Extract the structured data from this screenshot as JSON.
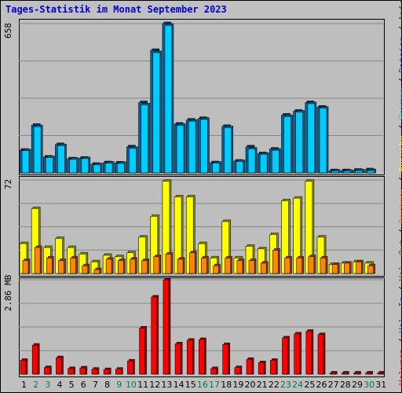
{
  "title": "Tages-Statistik im Monat September 2023",
  "colors": {
    "background": "#c0c0c0",
    "plot_background": "#bebebe",
    "hits_front": "#00ccff",
    "hits_side": "#006699",
    "files_front": "#00aadd",
    "visits_front": "#ffff00",
    "visits_side": "#999900",
    "hosts_front": "#ff8800",
    "hosts_side": "#994400",
    "volume_front": "#ff0000",
    "volume_side": "#990000",
    "weekday_label": "#000000",
    "weekend_label": "#008040"
  },
  "chart_data": [
    {
      "type": "bar",
      "name": "hits-files-panel",
      "ymax_label": "658",
      "ylim": [
        0,
        658
      ],
      "x": [
        "1",
        "2",
        "3",
        "4",
        "5",
        "6",
        "7",
        "8",
        "9",
        "10",
        "11",
        "12",
        "13",
        "14",
        "15",
        "16",
        "17",
        "18",
        "19",
        "20",
        "21",
        "22",
        "23",
        "24",
        "25",
        "26",
        "27",
        "28",
        "29",
        "30",
        "31"
      ],
      "series": [
        {
          "name": "Anfragen",
          "values": [
            100,
            210,
            70,
            125,
            62,
            65,
            38,
            45,
            44,
            115,
            310,
            540,
            658,
            215,
            233,
            240,
            45,
            205,
            52,
            115,
            85,
            105,
            255,
            272,
            310,
            290,
            10,
            10,
            12,
            14,
            0
          ]
        },
        {
          "name": "Dateien",
          "values": [
            98,
            204,
            68,
            120,
            60,
            63,
            36,
            43,
            42,
            108,
            300,
            530,
            650,
            210,
            228,
            236,
            43,
            200,
            50,
            105,
            82,
            100,
            248,
            268,
            305,
            285,
            8,
            8,
            10,
            10,
            0
          ]
        },
        {
          "name": "Seiten",
          "values": [
            0,
            0,
            0,
            0,
            0,
            0,
            0,
            0,
            0,
            0,
            0,
            0,
            0,
            0,
            0,
            0,
            0,
            0,
            0,
            0,
            0,
            0,
            0,
            0,
            0,
            0,
            0,
            0,
            0,
            0,
            0
          ]
        }
      ]
    },
    {
      "type": "bar",
      "name": "visits-hosts-panel",
      "ymax_label": "72",
      "ylim": [
        0,
        72
      ],
      "x": [
        "1",
        "2",
        "3",
        "4",
        "5",
        "6",
        "7",
        "8",
        "9",
        "10",
        "11",
        "12",
        "13",
        "14",
        "15",
        "16",
        "17",
        "18",
        "19",
        "20",
        "21",
        "22",
        "23",
        "24",
        "25",
        "26",
        "27",
        "28",
        "29",
        "30",
        "31"
      ],
      "series": [
        {
          "name": "Besuche",
          "values": [
            23,
            50,
            20,
            27,
            20,
            15,
            9,
            14,
            13,
            16,
            28,
            44,
            71,
            59,
            59,
            23,
            12,
            40,
            12,
            21,
            19,
            30,
            56,
            58,
            71,
            28,
            7,
            8,
            9,
            8,
            0
          ]
        },
        {
          "name": "Rechner",
          "values": [
            10,
            20,
            12,
            10,
            12,
            6,
            3,
            11,
            10,
            11,
            10,
            13,
            15,
            11,
            16,
            12,
            6,
            12,
            10,
            10,
            8,
            18,
            12,
            12,
            13,
            12,
            7,
            8,
            9,
            6,
            0
          ]
        }
      ]
    },
    {
      "type": "bar",
      "name": "volume-panel",
      "ymax_label": "2.86 MB",
      "ylim": [
        0,
        2.86
      ],
      "x": [
        "1",
        "2",
        "3",
        "4",
        "5",
        "6",
        "7",
        "8",
        "9",
        "10",
        "11",
        "12",
        "13",
        "14",
        "15",
        "16",
        "17",
        "18",
        "19",
        "20",
        "21",
        "22",
        "23",
        "24",
        "25",
        "26",
        "27",
        "28",
        "29",
        "30",
        "31"
      ],
      "series": [
        {
          "name": "Volumen",
          "values": [
            0.42,
            0.88,
            0.2,
            0.5,
            0.17,
            0.19,
            0.15,
            0.14,
            0.15,
            0.4,
            1.4,
            2.34,
            2.86,
            0.92,
            1.03,
            1.05,
            0.17,
            0.9,
            0.2,
            0.45,
            0.35,
            0.42,
            1.1,
            1.22,
            1.3,
            1.2,
            0.02,
            0.02,
            0.02,
            0.02,
            0.0
          ]
        }
      ]
    }
  ],
  "weekend_days": [
    "2",
    "3",
    "9",
    "10",
    "16",
    "17",
    "23",
    "24",
    "30"
  ],
  "side_legend": [
    {
      "text": "Volumen",
      "color": "#ff0000"
    },
    {
      "text": " / ",
      "color": "#000000"
    },
    {
      "text": "Vol. In",
      "color": "#0055cc"
    },
    {
      "text": " / ",
      "color": "#000000"
    },
    {
      "text": "Vol. Out",
      "color": "#666600"
    },
    {
      "text": " / ",
      "color": "#000000"
    },
    {
      "text": "Rechner",
      "color": "#ff8800"
    },
    {
      "text": " / ",
      "color": "#000000"
    },
    {
      "text": "Besuche",
      "color": "#ffff00"
    },
    {
      "text": " / ",
      "color": "#000000"
    },
    {
      "text": "Seiten",
      "color": "#00ccff"
    },
    {
      "text": " / ",
      "color": "#000000"
    },
    {
      "text": "Dateien",
      "color": "#0055cc"
    },
    {
      "text": " / ",
      "color": "#000000"
    },
    {
      "text": "Anfragen",
      "color": "#008040"
    }
  ]
}
